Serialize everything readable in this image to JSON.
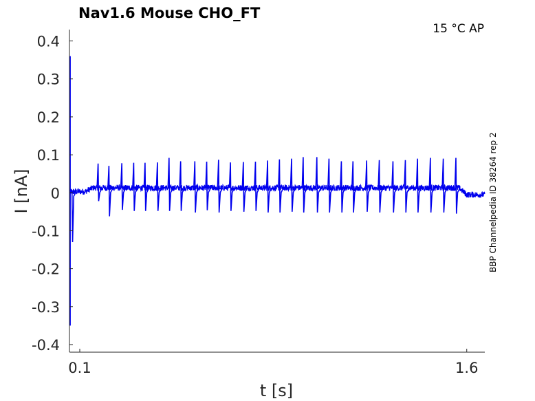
{
  "chart_data": {
    "type": "line",
    "title": "Nav1.6  Mouse  CHO_FT",
    "condition": "15 °C  AP",
    "side_label": "BBP Channelpedia ID 38264 rep 2",
    "xlabel": "t [s]",
    "ylabel": "I [nA]",
    "xlim": [
      0.06,
      1.67
    ],
    "ylim": [
      -0.42,
      0.43
    ],
    "x_ticks": [
      {
        "value": 0.1,
        "label": "0.1"
      },
      {
        "value": 1.6,
        "label": "1.6"
      }
    ],
    "y_ticks": [
      {
        "value": 0.4,
        "label": "0.4"
      },
      {
        "value": 0.3,
        "label": "0.3"
      },
      {
        "value": 0.2,
        "label": "0.2"
      },
      {
        "value": 0.1,
        "label": "0.1"
      },
      {
        "value": 0,
        "label": "0"
      },
      {
        "value": -0.1,
        "label": "-0.1"
      },
      {
        "value": -0.2,
        "label": "-0.2"
      },
      {
        "value": -0.3,
        "label": "-0.3"
      },
      {
        "value": -0.4,
        "label": "-0.4"
      }
    ],
    "grid": false,
    "series": [
      {
        "color": "#0000ee",
        "baseline_before": 0.003,
        "baseline_during": 0.013,
        "baseline_after": -0.005,
        "stim_start": 0.15,
        "stim_end": 1.57,
        "capacitive_transient": {
          "x": 0.06,
          "max": 0.36,
          "min": -0.35
        },
        "spikes": [
          {
            "x": 0.07,
            "peak": 0.0,
            "trough": -0.13
          },
          {
            "x": 0.171,
            "peak": 0.077,
            "trough": -0.022
          },
          {
            "x": 0.213,
            "peak": 0.071,
            "trough": -0.062
          },
          {
            "x": 0.263,
            "peak": 0.078,
            "trough": -0.045
          },
          {
            "x": 0.309,
            "peak": 0.079,
            "trough": -0.048
          },
          {
            "x": 0.353,
            "peak": 0.079,
            "trough": -0.048
          },
          {
            "x": 0.401,
            "peak": 0.08,
            "trough": -0.048
          },
          {
            "x": 0.446,
            "peak": 0.092,
            "trough": -0.048
          },
          {
            "x": 0.491,
            "peak": 0.083,
            "trough": -0.048
          },
          {
            "x": 0.546,
            "peak": 0.083,
            "trough": -0.052
          },
          {
            "x": 0.592,
            "peak": 0.082,
            "trough": -0.046
          },
          {
            "x": 0.638,
            "peak": 0.087,
            "trough": -0.052
          },
          {
            "x": 0.684,
            "peak": 0.08,
            "trough": -0.048
          },
          {
            "x": 0.734,
            "peak": 0.081,
            "trough": -0.05
          },
          {
            "x": 0.781,
            "peak": 0.082,
            "trough": -0.048
          },
          {
            "x": 0.828,
            "peak": 0.085,
            "trough": -0.052
          },
          {
            "x": 0.874,
            "peak": 0.088,
            "trough": -0.052
          },
          {
            "x": 0.921,
            "peak": 0.09,
            "trough": -0.05
          },
          {
            "x": 0.966,
            "peak": 0.094,
            "trough": -0.052
          },
          {
            "x": 1.019,
            "peak": 0.094,
            "trough": -0.052
          },
          {
            "x": 1.066,
            "peak": 0.09,
            "trough": -0.052
          },
          {
            "x": 1.114,
            "peak": 0.083,
            "trough": -0.052
          },
          {
            "x": 1.159,
            "peak": 0.083,
            "trough": -0.052
          },
          {
            "x": 1.212,
            "peak": 0.085,
            "trough": -0.05
          },
          {
            "x": 1.261,
            "peak": 0.086,
            "trough": -0.052
          },
          {
            "x": 1.314,
            "peak": 0.083,
            "trough": -0.052
          },
          {
            "x": 1.362,
            "peak": 0.086,
            "trough": -0.052
          },
          {
            "x": 1.409,
            "peak": 0.09,
            "trough": -0.052
          },
          {
            "x": 1.459,
            "peak": 0.092,
            "trough": -0.052
          },
          {
            "x": 1.509,
            "peak": 0.09,
            "trough": -0.052
          },
          {
            "x": 1.558,
            "peak": 0.092,
            "trough": -0.055
          }
        ]
      }
    ]
  }
}
